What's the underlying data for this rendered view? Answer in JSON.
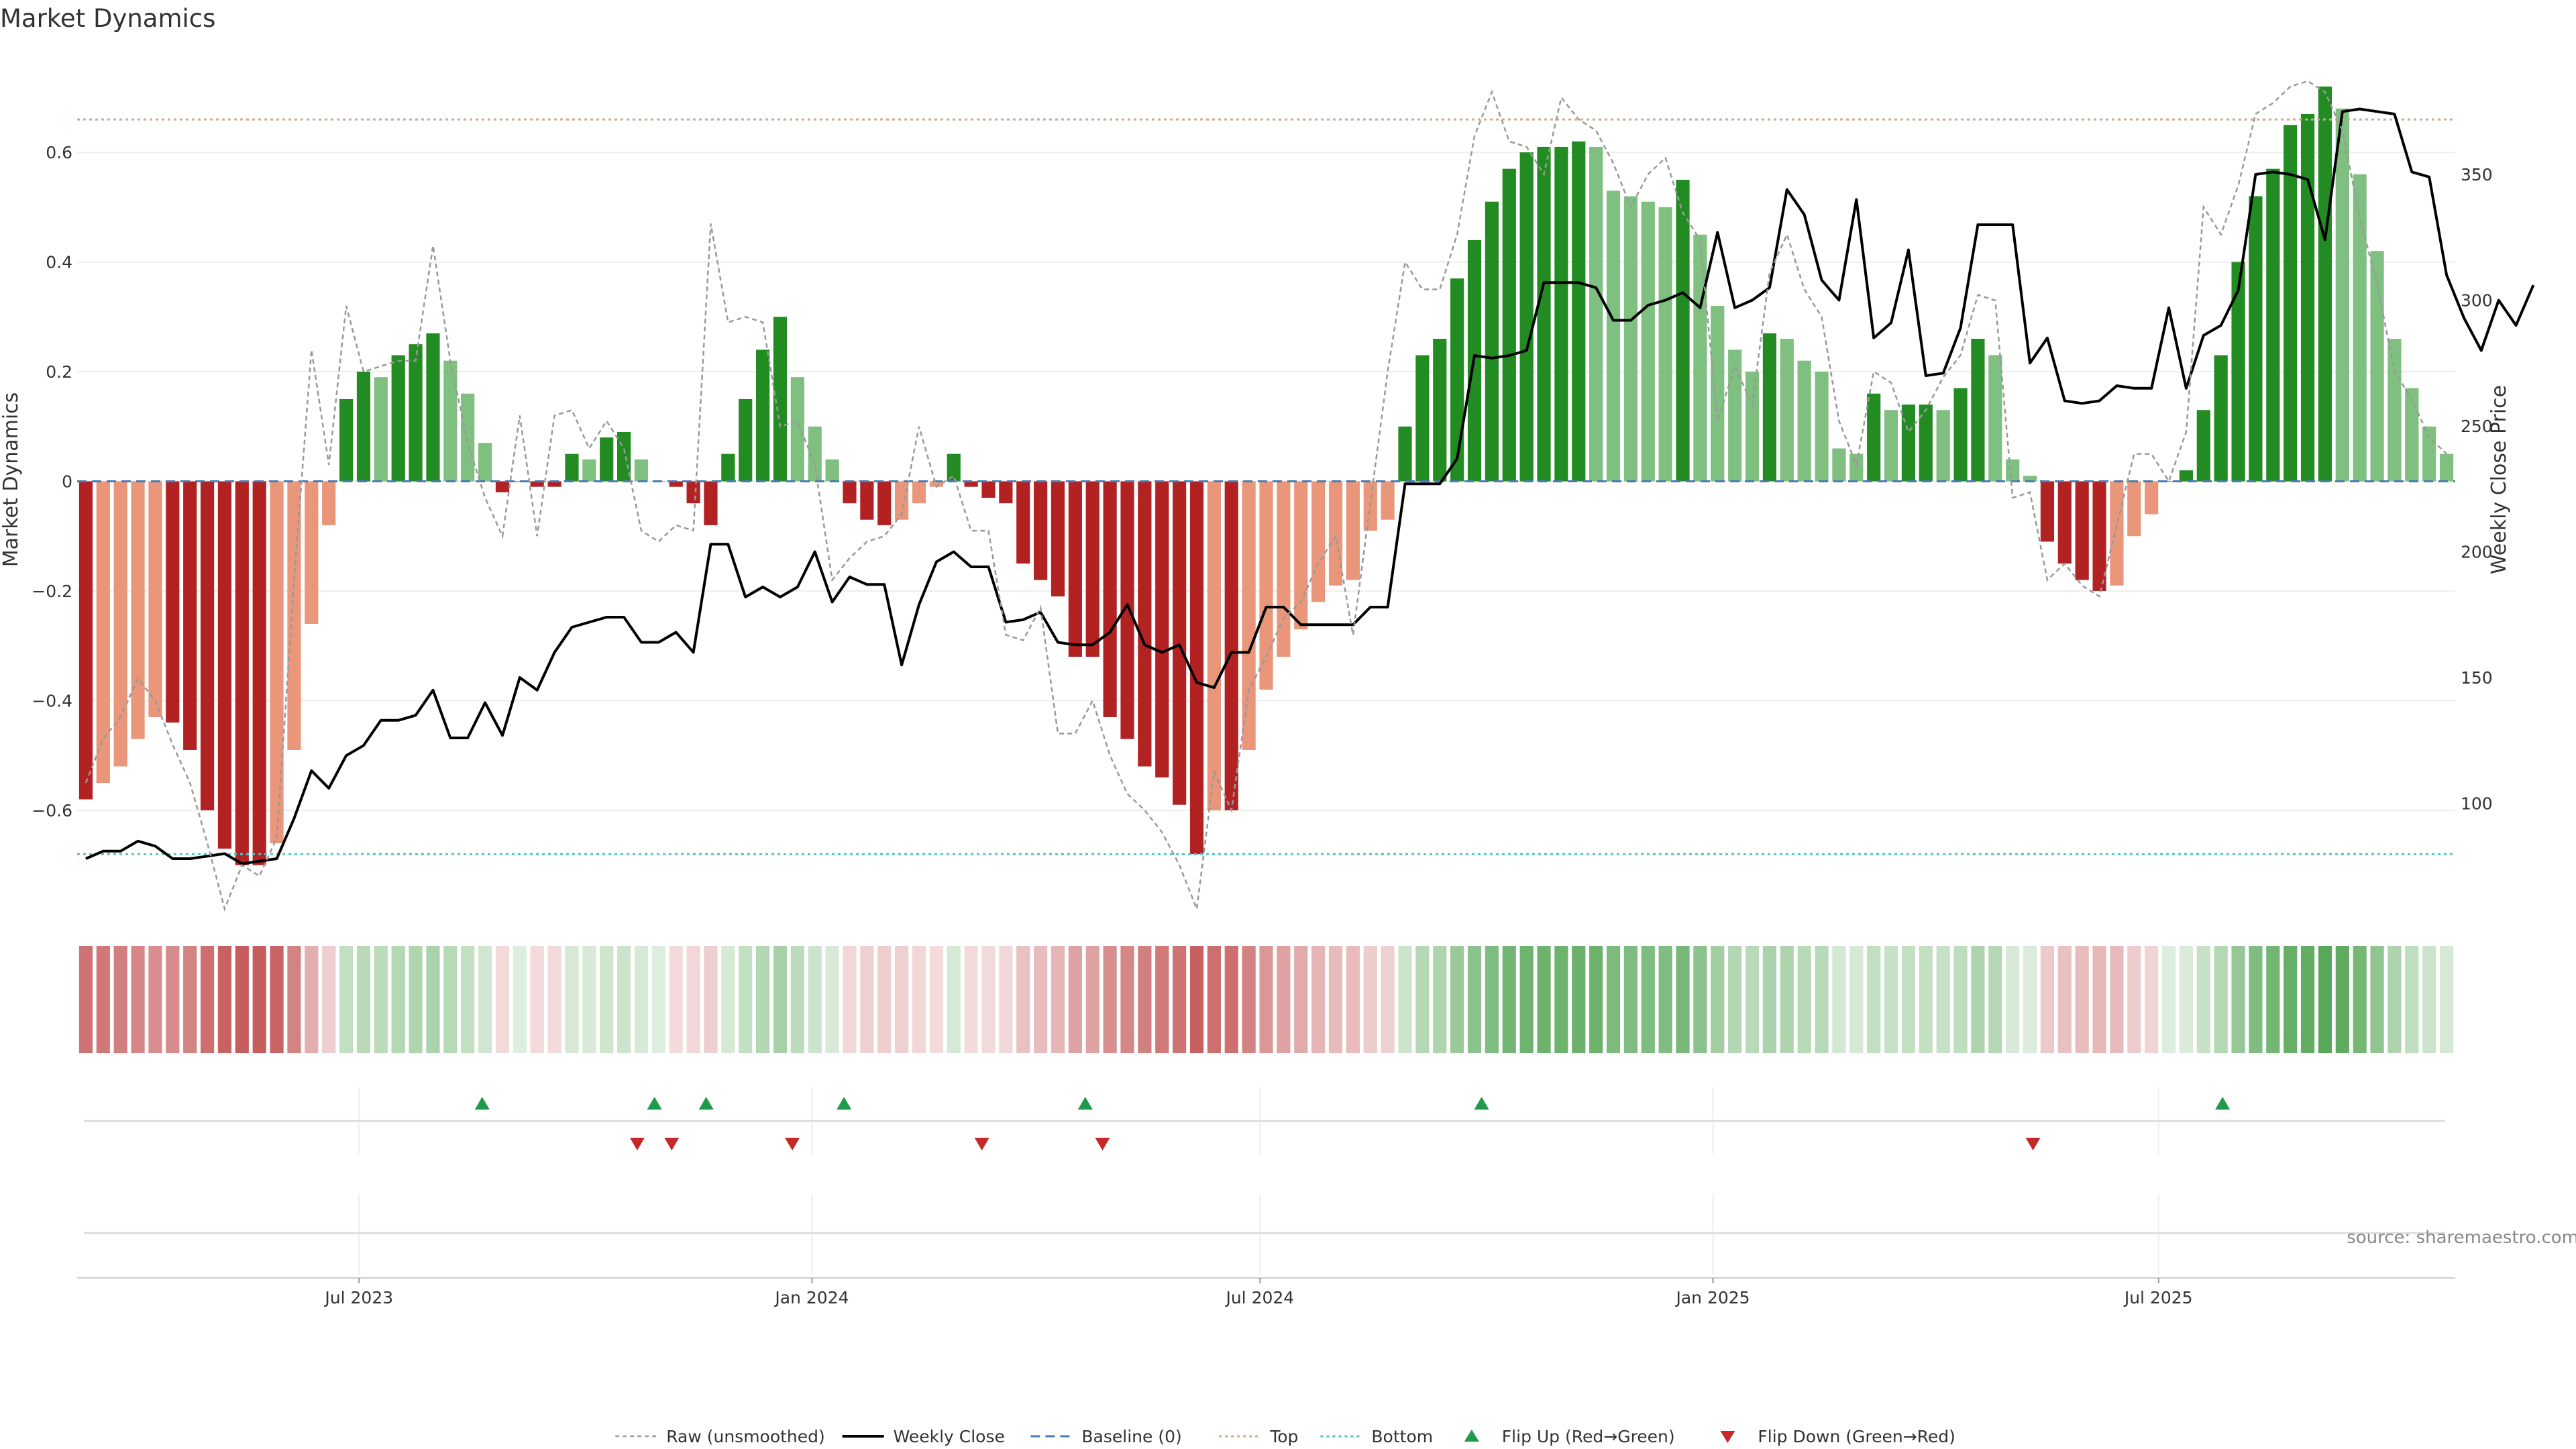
{
  "title": "Market Dynamics",
  "source": "source: sharemaestro.com",
  "colors": {
    "strong_red": "#b22222",
    "light_red": "#e9967a",
    "strong_green": "#228b22",
    "light_green": "#7fbf7f",
    "close_line": "#000000",
    "raw_line": "#999999",
    "baseline": "#4a7ab5",
    "top_line": "#d4a98a",
    "bottom_line": "#4fc4c4",
    "marker_up": "#1e9a4a",
    "marker_down": "#c62828"
  },
  "chart_data": {
    "type": "bar",
    "ylabel": "Market Dynamics",
    "y2label": "Weekly Close Price",
    "ylim": [
      -0.78,
      0.78
    ],
    "y2lim": [
      58,
      398
    ],
    "yticks": [
      -0.6,
      -0.4,
      -0.2,
      0,
      0.2,
      0.4,
      0.6
    ],
    "ytick_labels": [
      "−0.6",
      "−0.4",
      "−0.2",
      "0",
      "0.2",
      "0.4",
      "0.6"
    ],
    "y2ticks": [
      100,
      150,
      200,
      250,
      300,
      350
    ],
    "y2tick_labels": [
      "100",
      "150",
      "200",
      "250",
      "300",
      "350"
    ],
    "top_level": 0.66,
    "bottom_level": -0.68,
    "x_start": "2023-03-12",
    "x_end": "2025-10-26",
    "xticks": [
      {
        "label": "Jul 2023",
        "date": "2023-07-01"
      },
      {
        "label": "Jan 2024",
        "date": "2024-01-01"
      },
      {
        "label": "Jul 2024",
        "date": "2024-07-01"
      },
      {
        "label": "Jan 2025",
        "date": "2025-01-01"
      },
      {
        "label": "Jul 2025",
        "date": "2025-07-01"
      }
    ],
    "values": [
      -0.58,
      -0.55,
      -0.52,
      -0.47,
      -0.43,
      -0.44,
      -0.49,
      -0.6,
      -0.67,
      -0.7,
      -0.7,
      -0.66,
      -0.49,
      -0.26,
      -0.08,
      0.15,
      0.2,
      0.19,
      0.23,
      0.25,
      0.27,
      0.22,
      0.16,
      0.07,
      -0.02,
      0,
      -0.01,
      -0.01,
      0.05,
      0.04,
      0.08,
      0.09,
      0.04,
      0,
      -0.01,
      -0.04,
      -0.08,
      0.05,
      0.15,
      0.24,
      0.3,
      0.19,
      0.1,
      0.04,
      -0.04,
      -0.07,
      -0.08,
      -0.07,
      -0.04,
      -0.01,
      0.05,
      -0.01,
      -0.03,
      -0.04,
      -0.15,
      -0.18,
      -0.21,
      -0.32,
      -0.32,
      -0.43,
      -0.47,
      -0.52,
      -0.54,
      -0.59,
      -0.68,
      -0.6,
      -0.6,
      -0.49,
      -0.38,
      -0.32,
      -0.27,
      -0.22,
      -0.19,
      -0.18,
      -0.09,
      -0.07,
      0.1,
      0.23,
      0.26,
      0.37,
      0.44,
      0.51,
      0.57,
      0.6,
      0.61,
      0.61,
      0.62,
      0.61,
      0.53,
      0.52,
      0.51,
      0.5,
      0.55,
      0.45,
      0.32,
      0.24,
      0.2,
      0.27,
      0.26,
      0.22,
      0.2,
      0.06,
      0.05,
      0.16,
      0.13,
      0.14,
      0.14,
      0.13,
      0.17,
      0.26,
      0.23,
      0.04,
      0.01,
      -0.11,
      -0.15,
      -0.18,
      -0.2,
      -0.19,
      -0.1,
      -0.06,
      0,
      0.02,
      0.13,
      0.23,
      0.4,
      0.52,
      0.57,
      0.65,
      0.67,
      0.72,
      0.68,
      0.56,
      0.42,
      0.26,
      0.17,
      0.1,
      0.05
    ],
    "series": [
      {
        "name": "Weekly Close",
        "values": [
          78,
          81,
          81,
          85,
          83,
          78,
          78,
          79,
          80,
          76,
          77,
          78,
          94,
          113,
          106,
          119,
          123,
          133,
          133,
          135,
          145,
          126,
          126,
          140,
          127,
          150,
          145,
          160,
          170,
          172,
          174,
          174,
          164,
          164,
          168,
          160,
          203,
          203,
          182,
          186,
          182,
          186,
          200,
          180,
          190,
          187,
          187,
          155,
          179,
          196,
          200,
          194,
          194,
          172,
          173,
          176,
          164,
          163,
          163,
          168,
          179,
          163,
          160,
          163,
          148,
          146,
          160,
          160,
          178,
          178,
          171,
          171,
          171,
          171,
          178,
          178,
          227,
          227,
          227,
          237,
          278,
          277,
          278,
          280,
          307,
          307,
          307,
          305,
          292,
          292,
          298,
          300,
          303,
          297,
          327,
          297,
          300,
          305,
          344,
          334,
          308,
          300,
          340,
          285,
          291,
          320,
          270,
          271,
          289,
          330,
          330,
          330,
          275,
          285,
          260,
          259,
          260,
          266,
          265,
          265,
          297,
          265,
          286,
          290,
          304,
          350,
          351,
          350,
          348,
          324,
          375,
          376,
          375,
          374,
          351,
          349,
          310,
          293,
          280,
          300,
          290,
          306
        ]
      },
      {
        "name": "Raw (unsmoothed)",
        "values": [
          -0.55,
          -0.47,
          -0.43,
          -0.36,
          -0.4,
          -0.48,
          -0.55,
          -0.66,
          -0.78,
          -0.7,
          -0.72,
          -0.65,
          -0.18,
          0.24,
          0.03,
          0.32,
          0.2,
          0.21,
          0.22,
          0.22,
          0.43,
          0.22,
          0.07,
          -0.03,
          -0.1,
          0.12,
          -0.1,
          0.12,
          0.13,
          0.06,
          0.11,
          0.06,
          -0.09,
          -0.11,
          -0.08,
          -0.09,
          0.47,
          0.29,
          0.3,
          0.29,
          0.1,
          0.11,
          0.03,
          -0.18,
          -0.14,
          -0.11,
          -0.1,
          -0.06,
          0.1,
          -0.01,
          0.01,
          -0.09,
          -0.09,
          -0.28,
          -0.29,
          -0.23,
          -0.46,
          -0.46,
          -0.4,
          -0.5,
          -0.57,
          -0.6,
          -0.64,
          -0.7,
          -0.78,
          -0.53,
          -0.6,
          -0.38,
          -0.32,
          -0.25,
          -0.22,
          -0.15,
          -0.1,
          -0.28,
          -0.04,
          0.2,
          0.4,
          0.35,
          0.35,
          0.45,
          0.63,
          0.71,
          0.62,
          0.61,
          0.56,
          0.7,
          0.66,
          0.64,
          0.58,
          0.5,
          0.56,
          0.59,
          0.49,
          0.44,
          0.11,
          0.21,
          0.14,
          0.38,
          0.45,
          0.35,
          0.3,
          0.11,
          0.03,
          0.2,
          0.18,
          0.09,
          0.13,
          0.19,
          0.23,
          0.34,
          0.33,
          -0.03,
          -0.02,
          -0.18,
          -0.15,
          -0.19,
          -0.21,
          -0.08,
          0.05,
          0.05,
          0.0,
          0.09,
          0.5,
          0.45,
          0.54,
          0.67,
          0.69,
          0.72,
          0.73,
          0.71,
          0.64,
          0.48,
          0.36,
          0.2,
          0.15,
          0.08,
          0.05
        ]
      }
    ],
    "flip_up": [
      "2023-08-20",
      "2023-10-29",
      "2023-11-19",
      "2024-01-14",
      "2024-04-21",
      "2024-09-29",
      "2025-07-27"
    ],
    "flip_down": [
      "2023-10-22",
      "2023-11-05",
      "2023-12-24",
      "2024-03-10",
      "2024-04-28",
      "2025-05-11"
    ],
    "legend": [
      "Raw (unsmoothed)",
      "Weekly Close",
      "Baseline (0)",
      "Top",
      "Bottom",
      "Flip Up (Red→Green)",
      "Flip Down (Green→Red)"
    ],
    "legend_placement": "bottom-center"
  }
}
